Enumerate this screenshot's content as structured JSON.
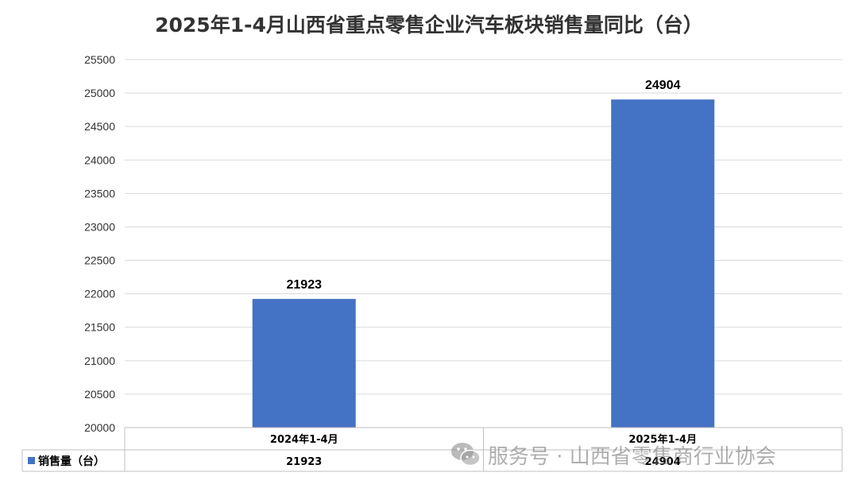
{
  "chart_data": {
    "type": "bar",
    "title": "2025年1-4月山西省重点零售企业汽车板块销售量同比（台）",
    "categories": [
      "2024年1-4月",
      "2025年1-4月"
    ],
    "series": [
      {
        "name": "销售量（台）",
        "values": [
          21923,
          24904
        ],
        "color": "#4472C4"
      }
    ],
    "ylim": [
      20000,
      25500
    ],
    "y_ticks": [
      20000,
      20500,
      21000,
      21500,
      22000,
      22500,
      23000,
      23500,
      24000,
      24500,
      25000,
      25500
    ],
    "data_labels": [
      "21923",
      "24904"
    ],
    "data_table": true,
    "grid": true,
    "gridline_color": "#d9d9d9"
  },
  "watermark": {
    "text": "服务号 · 山西省零售商行业协会",
    "icon": "wechat-icon"
  }
}
